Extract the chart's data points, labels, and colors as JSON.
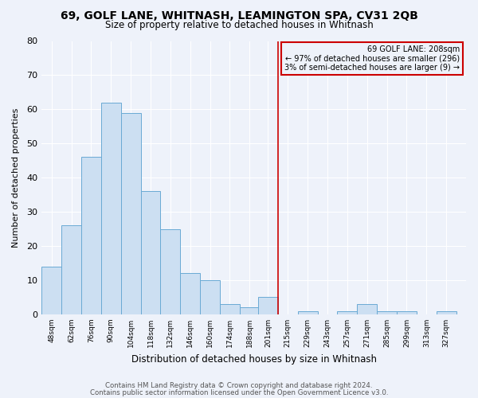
{
  "title": "69, GOLF LANE, WHITNASH, LEAMINGTON SPA, CV31 2QB",
  "subtitle": "Size of property relative to detached houses in Whitnash",
  "xlabel": "Distribution of detached houses by size in Whitnash",
  "ylabel": "Number of detached properties",
  "bar_color": "#ccdff2",
  "bar_edge_color": "#6aaad4",
  "background_color": "#eef2fa",
  "grid_color": "#ffffff",
  "bin_labels": [
    "48sqm",
    "62sqm",
    "76sqm",
    "90sqm",
    "104sqm",
    "118sqm",
    "132sqm",
    "146sqm",
    "160sqm",
    "174sqm",
    "188sqm",
    "201sqm",
    "215sqm",
    "229sqm",
    "243sqm",
    "257sqm",
    "271sqm",
    "285sqm",
    "299sqm",
    "313sqm",
    "327sqm"
  ],
  "bar_heights": [
    14,
    26,
    46,
    62,
    59,
    36,
    25,
    12,
    10,
    3,
    2,
    5,
    0,
    1,
    0,
    1,
    3,
    1,
    1,
    0,
    1
  ],
  "marker_x": 208,
  "marker_line_color": "#cc0000",
  "annotation_line1": "69 GOLF LANE: 208sqm",
  "annotation_line2": "← 97% of detached houses are smaller (296)",
  "annotation_line3": "3% of semi-detached houses are larger (9) →",
  "annotation_box_edge_color": "#cc0000",
  "xlim_min": 41,
  "xlim_max": 341,
  "ylim_min": 0,
  "ylim_max": 80,
  "footer1": "Contains HM Land Registry data © Crown copyright and database right 2024.",
  "footer2": "Contains public sector information licensed under the Open Government Licence v3.0.",
  "bin_width": 14,
  "yticks": [
    0,
    10,
    20,
    30,
    40,
    50,
    60,
    70,
    80
  ]
}
